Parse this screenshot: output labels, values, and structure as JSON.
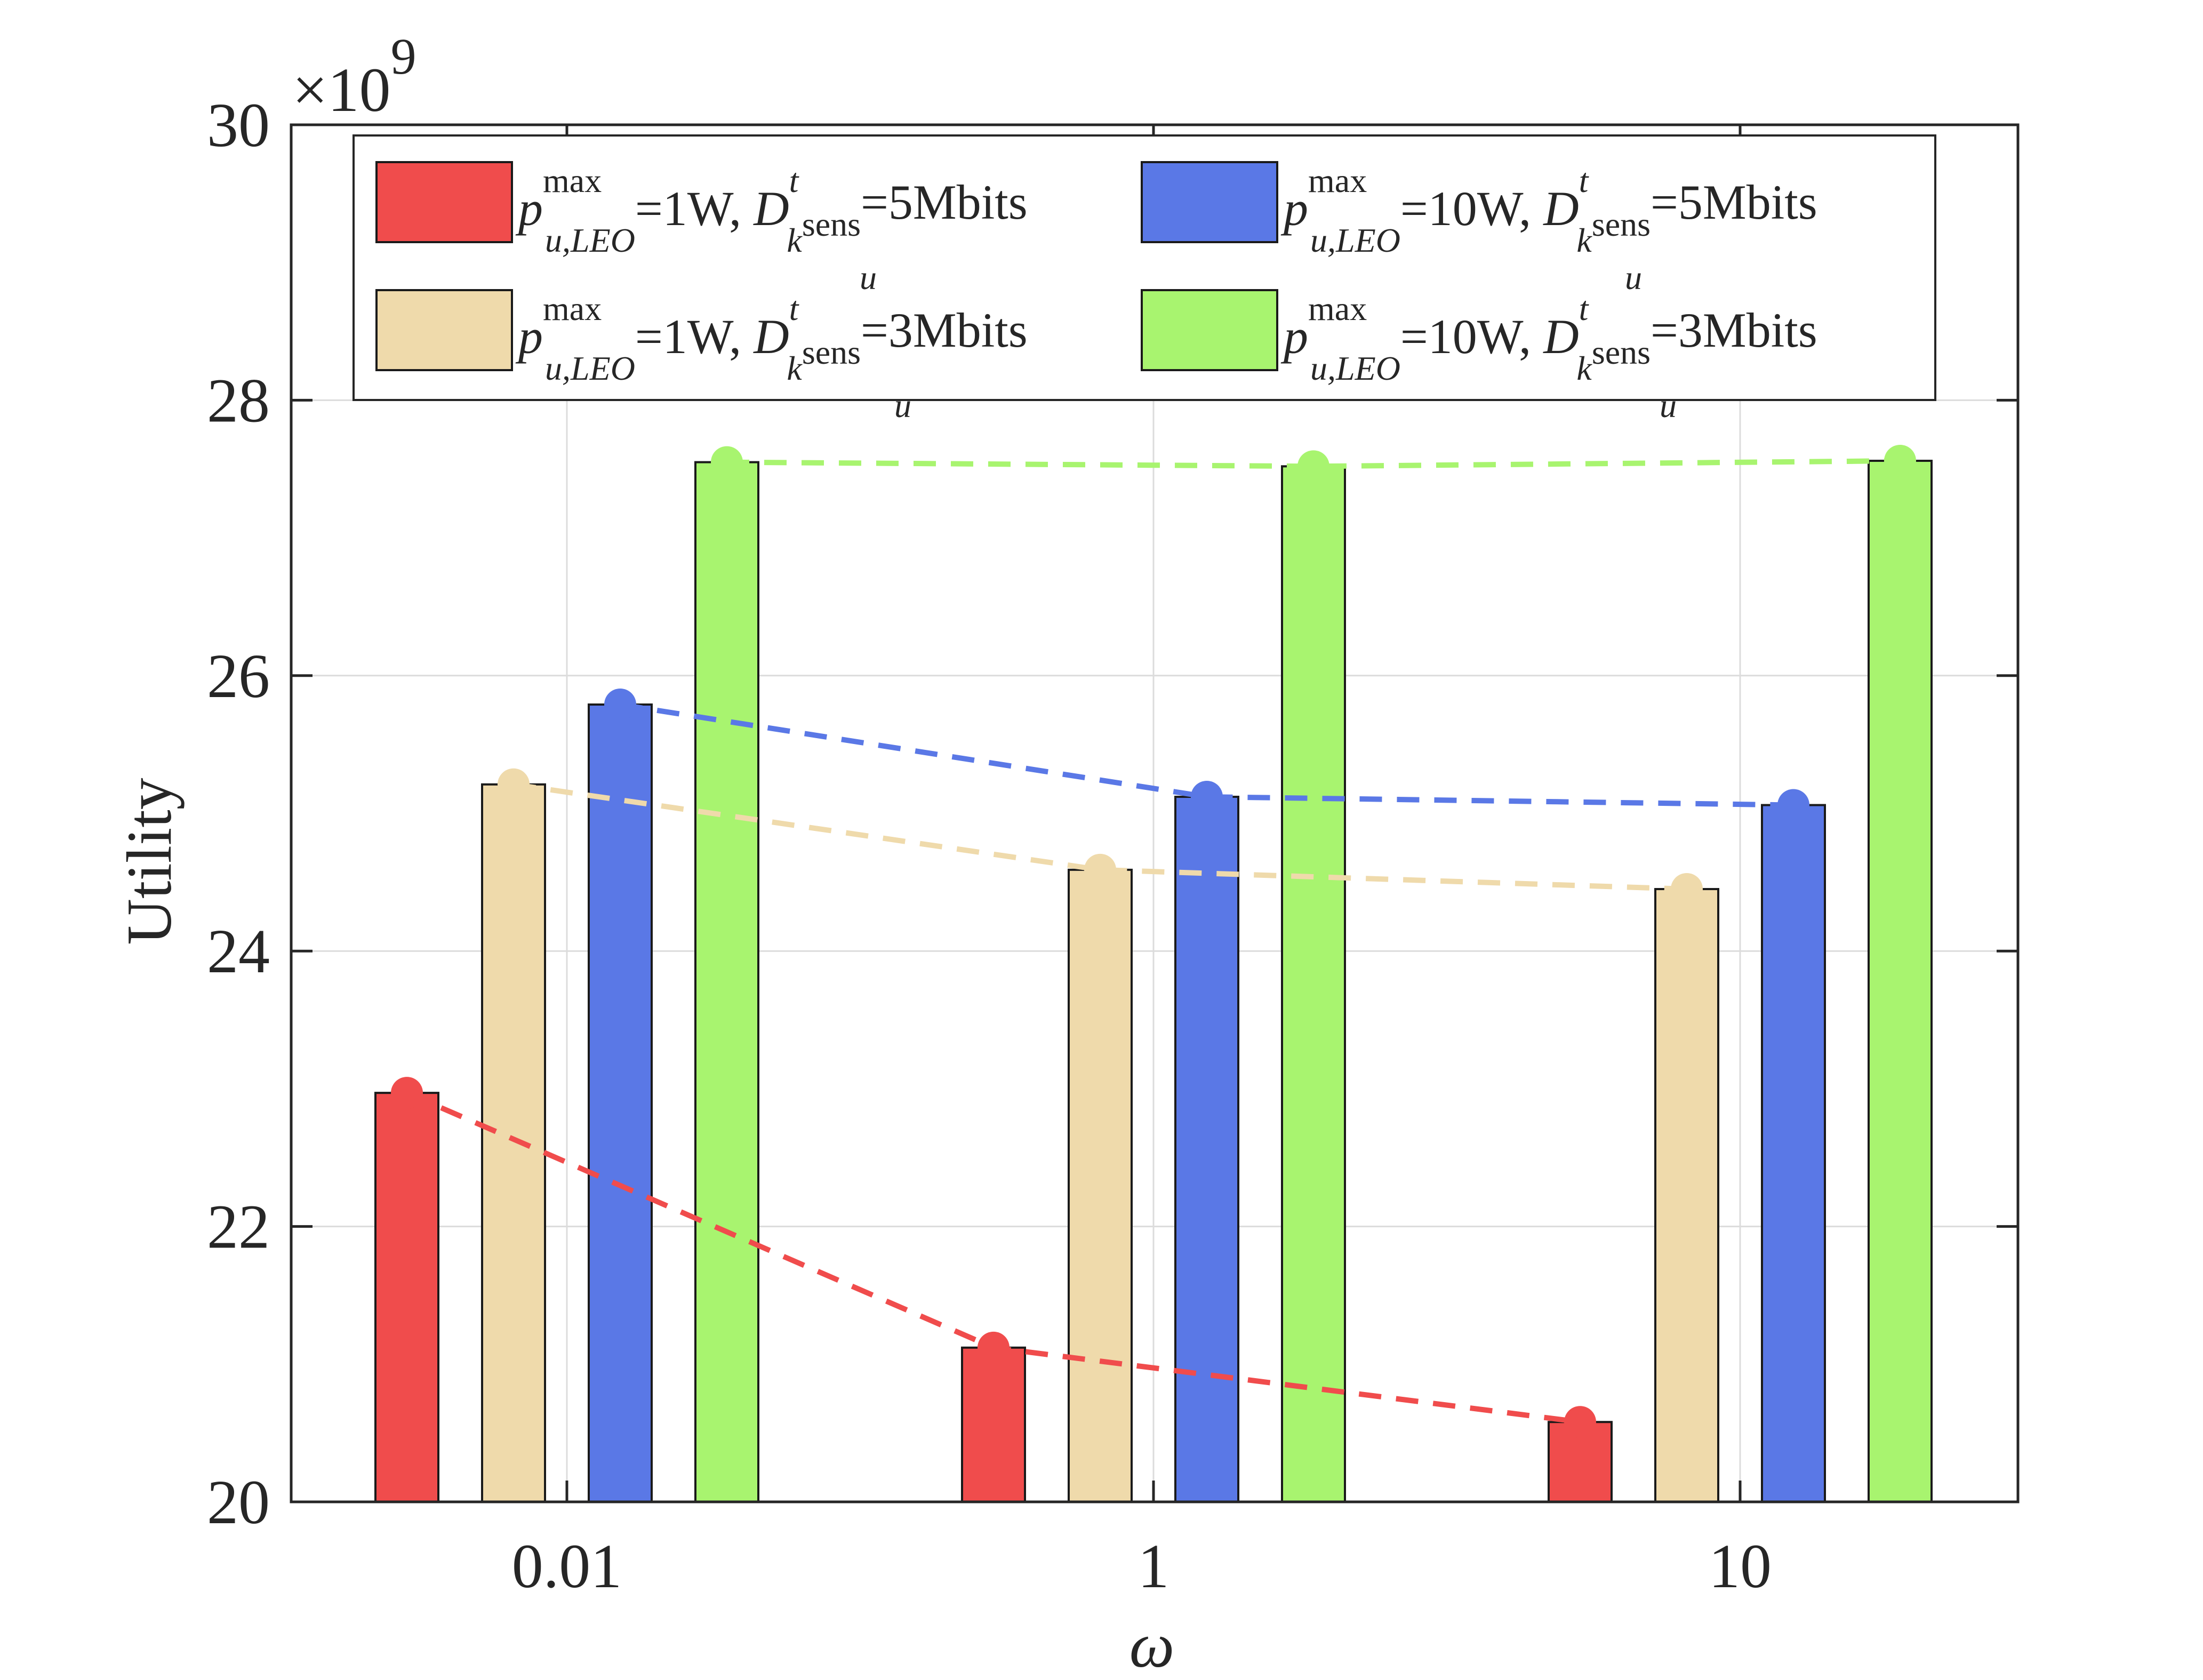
{
  "chart_data": {
    "type": "bar",
    "title": "",
    "xlabel": "ω",
    "ylabel": "Utility",
    "y_multiplier": "×10",
    "y_multiplier_exponent": "9",
    "categories": [
      "0.01",
      "1",
      "10"
    ],
    "ylim": [
      20,
      30
    ],
    "yticks": [
      "20",
      "22",
      "24",
      "26",
      "28",
      "30"
    ],
    "grid": true,
    "legend_position": "top",
    "series": [
      {
        "name": "p_u,LEO^max=1W, D_k_u^t sens=5Mbits",
        "legend": {
          "p": "p",
          "sup": "max",
          "sub": "u,LEO",
          "pval": "=1W, ",
          "d": "D",
          "dsup": "t",
          "dsub1": "k",
          "dsub2": "sens",
          "dsub3": "u",
          "dval": "=5Mbits"
        },
        "color": "#f04c4c",
        "values": [
          22.97,
          21.12,
          20.58
        ]
      },
      {
        "name": "p_u,LEO^max=1W, D_k_u^t sens=3Mbits",
        "legend": {
          "p": "p",
          "sup": "max",
          "sub": "u,LEO",
          "pval": "=1W, ",
          "d": "D",
          "dsup": "t",
          "dsub1": "k",
          "dsub2": "sens",
          "dsub3": "u",
          "dval": "=3Mbits"
        },
        "color": "#efdaab",
        "values": [
          25.21,
          24.59,
          24.45
        ]
      },
      {
        "name": "p_u,LEO^max=10W, D_k_u^t sens=5Mbits",
        "legend": {
          "p": "p",
          "sup": "max",
          "sub": "u,LEO",
          "pval": "=10W, ",
          "d": "D",
          "dsup": "t",
          "dsub1": "k",
          "dsub2": "sens",
          "dsub3": "u",
          "dval": "=5Mbits"
        },
        "color": "#5a78e6",
        "values": [
          25.79,
          25.12,
          25.06
        ]
      },
      {
        "name": "p_u,LEO^max=10W, D_k_u^t sens=3Mbits",
        "legend": {
          "p": "p",
          "sup": "max",
          "sub": "u,LEO",
          "pval": "=10W, ",
          "d": "D",
          "dsup": "t",
          "dsub1": "k",
          "dsub2": "sens",
          "dsub3": "u",
          "dval": "=3Mbits"
        },
        "color": "#a8f46f",
        "values": [
          27.55,
          27.52,
          27.56
        ]
      }
    ]
  }
}
